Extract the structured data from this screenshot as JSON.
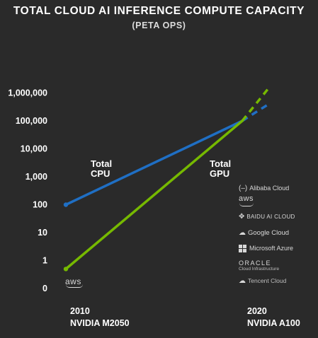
{
  "chart_data": {
    "type": "line",
    "title": "TOTAL CLOUD AI INFERENCE COMPUTE CAPACITY",
    "subtitle": "(PETA OPS)",
    "y_scale": "log",
    "y_tick_labels": [
      "0",
      "1",
      "10",
      "100",
      "1,000",
      "10,000",
      "100,000",
      "1,000,000"
    ],
    "categories": [
      {
        "year": "2010",
        "device": "NVIDIA M2050"
      },
      {
        "year": "2020",
        "device": "NVIDIA A100"
      }
    ],
    "series": [
      {
        "name": "Total CPU",
        "label_lines": [
          "Total",
          "CPU"
        ],
        "color": "#1f6fc4",
        "points": [
          {
            "x": 2010,
            "y": 100
          },
          {
            "x": 2020,
            "y": 100000
          }
        ],
        "projection": [
          {
            "x": 2020,
            "y": 100000
          },
          {
            "x": 2021.5,
            "y": 400000
          }
        ]
      },
      {
        "name": "Total GPU",
        "label_lines": [
          "Total",
          "GPU"
        ],
        "color": "#76b900",
        "points": [
          {
            "x": 2010,
            "y": 0.5
          },
          {
            "x": 2020,
            "y": 100000
          }
        ],
        "projection": [
          {
            "x": 2020,
            "y": 100000
          },
          {
            "x": 2021.5,
            "y": 1500000
          }
        ]
      }
    ],
    "legend": "none",
    "grid": false
  },
  "providers": {
    "alibaba": "Alibaba Cloud",
    "aws": "aws",
    "baidu": "BAIDU AI CLOUD",
    "google": "Google Cloud",
    "microsoft": "Microsoft Azure",
    "oracle_top": "ORACLE",
    "oracle_sub": "Cloud Infrastructure",
    "tencent": "Tencent Cloud"
  },
  "bottom_logo": "aws"
}
